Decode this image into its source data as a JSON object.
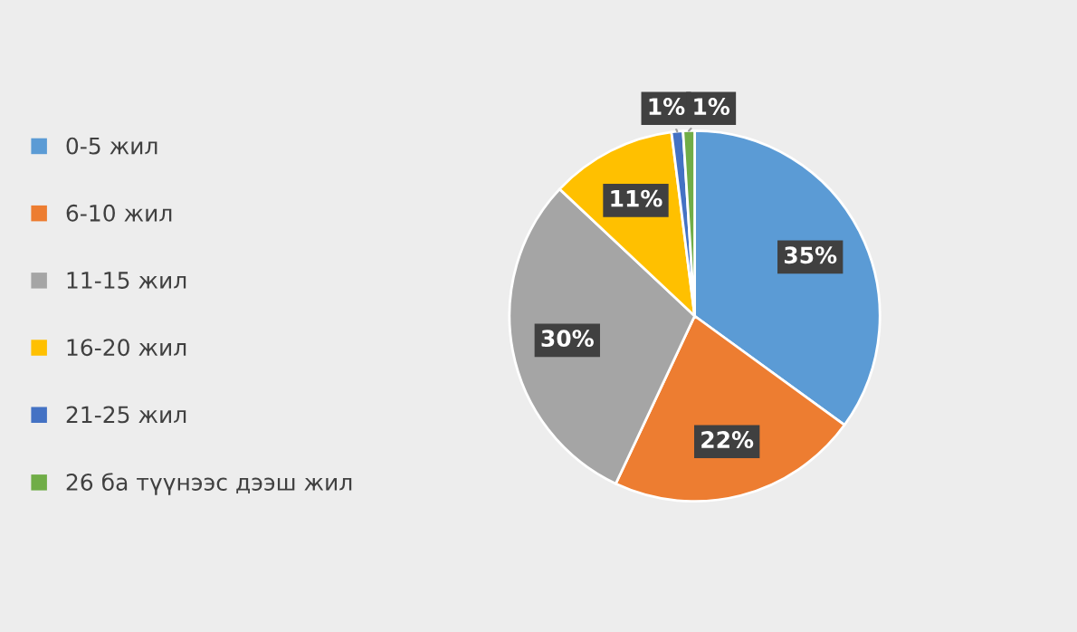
{
  "chart_data": {
    "type": "pie",
    "categories": [
      "0-5 жил",
      "6-10 жил",
      "11-15 жил",
      "16-20 жил",
      "21-25 жил",
      "26 ба түүнээс дээш жил"
    ],
    "values": [
      35,
      22,
      30,
      11,
      1,
      1
    ],
    "colors": [
      "#5b9bd5",
      "#ed7d31",
      "#a5a5a5",
      "#ffc000",
      "#4472c4",
      "#70ad47"
    ],
    "value_labels": [
      "35%",
      "22%",
      "30%",
      "11%",
      "1%",
      "1%"
    ],
    "legend": "left"
  }
}
